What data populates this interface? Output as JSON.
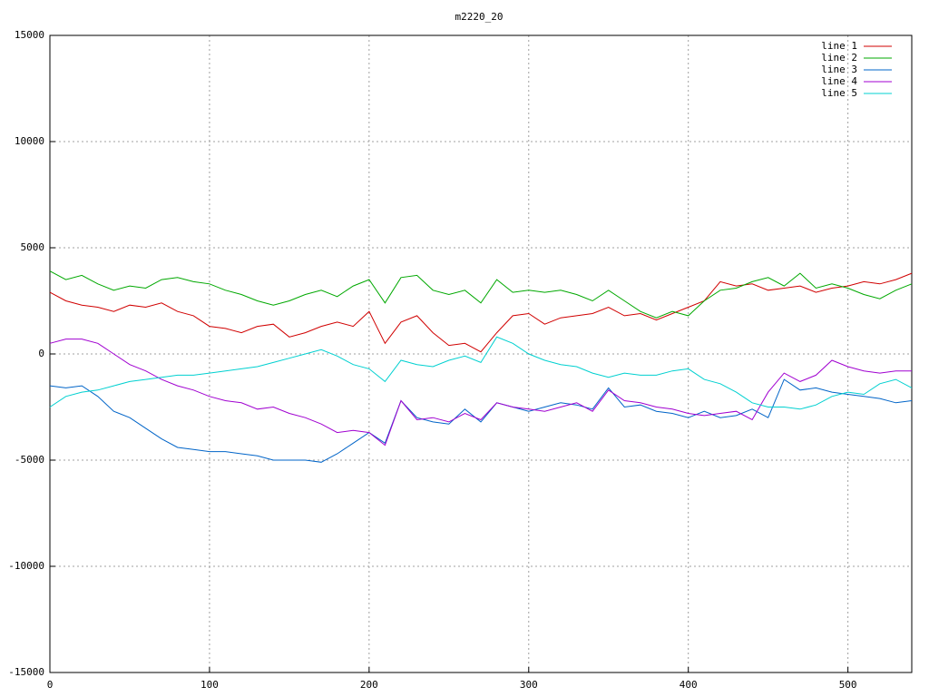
{
  "chart_data": {
    "type": "line",
    "title": "m2220_20",
    "x": [
      0,
      10,
      20,
      30,
      40,
      50,
      60,
      70,
      80,
      90,
      100,
      110,
      120,
      130,
      140,
      150,
      160,
      170,
      180,
      190,
      200,
      210,
      220,
      230,
      240,
      250,
      260,
      270,
      280,
      290,
      300,
      310,
      320,
      330,
      340,
      350,
      360,
      370,
      380,
      390,
      400,
      410,
      420,
      430,
      440,
      450,
      460,
      470,
      480,
      490,
      500,
      510,
      520,
      530,
      540
    ],
    "series": [
      {
        "name": "line 1",
        "color": "#d00000",
        "values": [
          2900,
          2500,
          2300,
          2200,
          2000,
          2300,
          2200,
          2400,
          2000,
          1800,
          1300,
          1200,
          1000,
          1300,
          1400,
          800,
          1000,
          1300,
          1500,
          1300,
          2000,
          500,
          1500,
          1800,
          1000,
          400,
          500,
          100,
          1000,
          1800,
          1900,
          1400,
          1700,
          1800,
          1900,
          2200,
          1800,
          1900,
          1600,
          1900,
          2200,
          2500,
          3400,
          3200,
          3300,
          3000,
          3100,
          3200,
          2900,
          3100,
          3200,
          3400,
          3300,
          3500,
          3800
        ]
      },
      {
        "name": "line 2",
        "color": "#00a800",
        "values": [
          3900,
          3500,
          3700,
          3300,
          3000,
          3200,
          3100,
          3500,
          3600,
          3400,
          3300,
          3000,
          2800,
          2500,
          2300,
          2500,
          2800,
          3000,
          2700,
          3200,
          3500,
          2400,
          3600,
          3700,
          3000,
          2800,
          3000,
          2400,
          3500,
          2900,
          3000,
          2900,
          3000,
          2800,
          2500,
          3000,
          2500,
          2000,
          1700,
          2000,
          1800,
          2500,
          3000,
          3100,
          3400,
          3600,
          3200,
          3800,
          3100,
          3300,
          3100,
          2800,
          2600,
          3000,
          3300
        ]
      },
      {
        "name": "line 3",
        "color": "#0064c8",
        "values": [
          -1500,
          -1600,
          -1500,
          -2000,
          -2700,
          -3000,
          -3500,
          -4000,
          -4400,
          -4500,
          -4600,
          -4600,
          -4700,
          -4800,
          -5000,
          -5000,
          -5000,
          -5100,
          -4700,
          -4200,
          -3700,
          -4200,
          -2200,
          -3000,
          -3200,
          -3300,
          -2600,
          -3200,
          -2300,
          -2500,
          -2700,
          -2500,
          -2300,
          -2400,
          -2600,
          -1600,
          -2500,
          -2400,
          -2700,
          -2800,
          -3000,
          -2700,
          -3000,
          -2900,
          -2600,
          -3000,
          -1200,
          -1700,
          -1600,
          -1800,
          -1900,
          -2000,
          -2100,
          -2300,
          -2200
        ]
      },
      {
        "name": "line 4",
        "color": "#a000d0",
        "values": [
          500,
          700,
          700,
          500,
          0,
          -500,
          -800,
          -1200,
          -1500,
          -1700,
          -2000,
          -2200,
          -2300,
          -2600,
          -2500,
          -2800,
          -3000,
          -3300,
          -3700,
          -3600,
          -3700,
          -4300,
          -2200,
          -3100,
          -3000,
          -3200,
          -2800,
          -3100,
          -2300,
          -2500,
          -2600,
          -2700,
          -2500,
          -2300,
          -2700,
          -1700,
          -2200,
          -2300,
          -2500,
          -2600,
          -2800,
          -2900,
          -2800,
          -2700,
          -3100,
          -1800,
          -900,
          -1300,
          -1000,
          -300,
          -600,
          -800,
          -900,
          -800,
          -800
        ]
      },
      {
        "name": "line 5",
        "color": "#00d0d0",
        "values": [
          -2500,
          -2000,
          -1800,
          -1700,
          -1500,
          -1300,
          -1200,
          -1100,
          -1000,
          -1000,
          -900,
          -800,
          -700,
          -600,
          -400,
          -200,
          0,
          200,
          -100,
          -500,
          -700,
          -1300,
          -300,
          -500,
          -600,
          -300,
          -100,
          -400,
          800,
          500,
          0,
          -300,
          -500,
          -600,
          -900,
          -1100,
          -900,
          -1000,
          -1000,
          -800,
          -700,
          -1200,
          -1400,
          -1800,
          -2300,
          -2500,
          -2500,
          -2600,
          -2400,
          -2000,
          -1800,
          -1900,
          -1400,
          -1200,
          -1600
        ]
      }
    ],
    "xlim": [
      0,
      540
    ],
    "xticks": [
      0,
      100,
      200,
      300,
      400,
      500
    ],
    "ylim": [
      -15000,
      15000
    ],
    "yticks": [
      -15000,
      -10000,
      -5000,
      0,
      5000,
      10000,
      15000
    ],
    "grid": true,
    "legend": "top-right"
  }
}
